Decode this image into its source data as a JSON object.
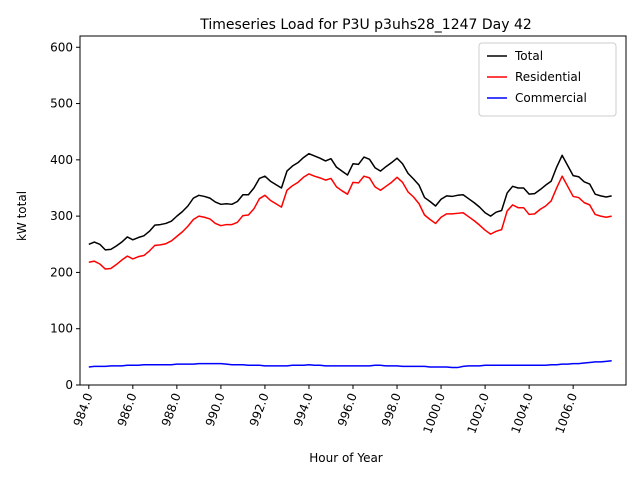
{
  "chart_data": {
    "type": "line",
    "title": "Timeseries Load for P3U p3uhs28_1247  Day 42",
    "xlabel": "Hour of Year",
    "ylabel": "kW total",
    "xlim": [
      983.6,
      1008.4
    ],
    "ylim": [
      0,
      620
    ],
    "x_ticks": [
      984,
      986,
      988,
      990,
      992,
      994,
      996,
      998,
      1000,
      1002,
      1004,
      1006
    ],
    "x_tick_labels": [
      "984.0",
      "986.0",
      "988.0",
      "990.0",
      "992.0",
      "994.0",
      "996.0",
      "998.0",
      "1000.0",
      "1002.0",
      "1004.0",
      "1006.0"
    ],
    "y_ticks": [
      0,
      100,
      200,
      300,
      400,
      500,
      600
    ],
    "y_tick_labels": [
      "0",
      "100",
      "200",
      "300",
      "400",
      "500",
      "600"
    ],
    "grid": false,
    "legend_position": "top-right",
    "x": [
      984.0,
      984.25,
      984.5,
      984.75,
      985.0,
      985.25,
      985.5,
      985.75,
      986.0,
      986.25,
      986.5,
      986.75,
      987.0,
      987.25,
      987.5,
      987.75,
      988.0,
      988.25,
      988.5,
      988.75,
      989.0,
      989.25,
      989.5,
      989.75,
      990.0,
      990.25,
      990.5,
      990.75,
      991.0,
      991.25,
      991.5,
      991.75,
      992.0,
      992.25,
      992.5,
      992.75,
      993.0,
      993.25,
      993.5,
      993.75,
      994.0,
      994.25,
      994.5,
      994.75,
      995.0,
      995.25,
      995.5,
      995.75,
      996.0,
      996.25,
      996.5,
      996.75,
      997.0,
      997.25,
      997.5,
      997.75,
      998.0,
      998.25,
      998.5,
      998.75,
      999.0,
      999.25,
      999.5,
      999.75,
      1000.0,
      1000.25,
      1000.5,
      1000.75,
      1001.0,
      1001.25,
      1001.5,
      1001.75,
      1002.0,
      1002.25,
      1002.5,
      1002.75,
      1003.0,
      1003.25,
      1003.5,
      1003.75,
      1004.0,
      1004.25,
      1004.5,
      1004.75,
      1005.0,
      1005.25,
      1005.5,
      1005.75,
      1006.0,
      1006.25,
      1006.5,
      1006.75,
      1007.0,
      1007.25,
      1007.5,
      1007.75
    ],
    "series": [
      {
        "name": "Total",
        "color": "#000000",
        "values": [
          250,
          254,
          250,
          240,
          241,
          247,
          254,
          263,
          258,
          262,
          265,
          273,
          284,
          285,
          287,
          291,
          300,
          308,
          318,
          332,
          337,
          335,
          332,
          325,
          321,
          322,
          321,
          326,
          338,
          338,
          350,
          367,
          371,
          362,
          356,
          350,
          380,
          389,
          395,
          404,
          411,
          407,
          403,
          398,
          402,
          387,
          380,
          373,
          393,
          392,
          405,
          401,
          386,
          380,
          388,
          395,
          403,
          393,
          376,
          366,
          355,
          333,
          326,
          318,
          330,
          336,
          335,
          337,
          338,
          331,
          324,
          316,
          306,
          300,
          307,
          310,
          341,
          353,
          350,
          350,
          339,
          340,
          347,
          355,
          362,
          387,
          408,
          390,
          372,
          370,
          361,
          357,
          339,
          336,
          334,
          336
        ]
      },
      {
        "name": "Residential",
        "color": "#ff0000",
        "values": [
          218,
          220,
          215,
          206,
          207,
          214,
          222,
          229,
          224,
          228,
          230,
          238,
          248,
          249,
          251,
          256,
          264,
          272,
          282,
          294,
          300,
          298,
          295,
          287,
          283,
          285,
          285,
          289,
          301,
          302,
          313,
          331,
          337,
          328,
          322,
          316,
          346,
          354,
          360,
          369,
          375,
          371,
          368,
          364,
          367,
          352,
          345,
          339,
          360,
          359,
          371,
          368,
          352,
          346,
          353,
          360,
          369,
          360,
          343,
          334,
          322,
          302,
          294,
          287,
          298,
          304,
          304,
          305,
          306,
          299,
          292,
          284,
          275,
          268,
          273,
          276,
          309,
          320,
          315,
          315,
          303,
          304,
          312,
          318,
          327,
          350,
          371,
          353,
          335,
          333,
          324,
          320,
          303,
          300,
          298,
          300
        ]
      },
      {
        "name": "Commercial",
        "color": "#0000ff",
        "values": [
          32,
          33,
          33,
          33,
          34,
          34,
          34,
          35,
          35,
          35,
          36,
          36,
          36,
          36,
          36,
          36,
          37,
          37,
          37,
          37,
          38,
          38,
          38,
          38,
          38,
          37,
          36,
          36,
          36,
          35,
          35,
          35,
          34,
          34,
          34,
          34,
          34,
          35,
          35,
          35,
          36,
          35,
          35,
          34,
          34,
          34,
          34,
          34,
          34,
          34,
          34,
          34,
          35,
          35,
          34,
          34,
          34,
          33,
          33,
          33,
          33,
          33,
          32,
          32,
          32,
          32,
          31,
          31,
          33,
          34,
          34,
          34,
          35,
          35,
          35,
          35,
          35,
          35,
          35,
          35,
          35,
          35,
          35,
          35,
          36,
          36,
          37,
          37,
          38,
          38,
          39,
          40,
          41,
          41,
          42,
          43
        ]
      }
    ]
  }
}
